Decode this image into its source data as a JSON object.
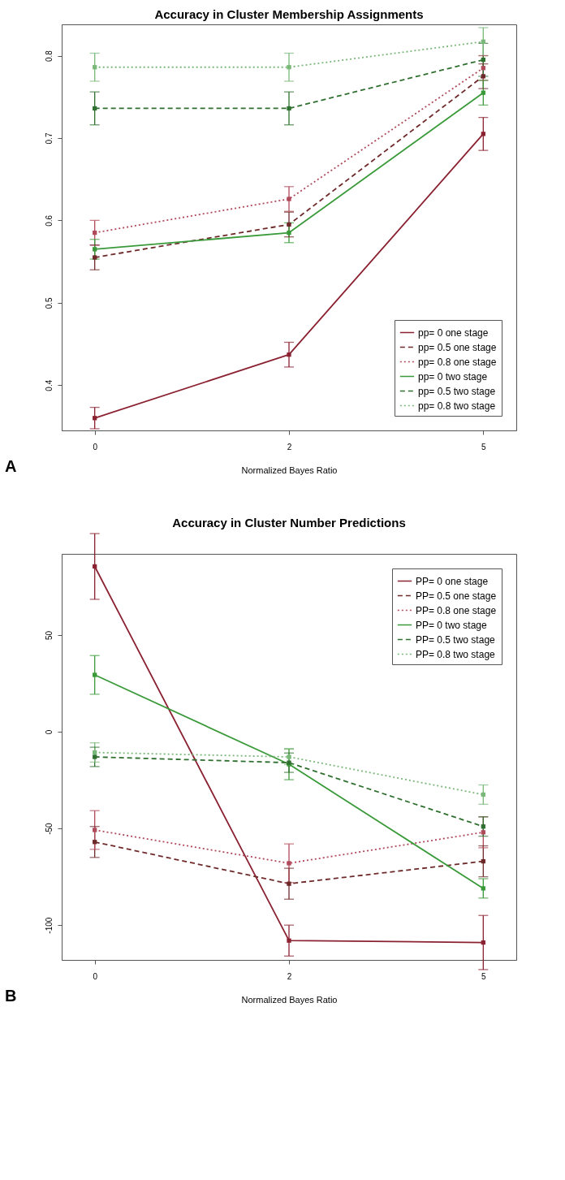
{
  "chart_data": [
    {
      "type": "line",
      "title": "Accuracy in Cluster Membership Assignments",
      "xlabel": "Normalized Bayes Ratio",
      "categories": [
        "0",
        "2",
        "5"
      ],
      "ylim": [
        0.345,
        0.838
      ],
      "yticks": [
        0.4,
        0.5,
        0.6,
        0.7,
        0.8
      ],
      "grid": false,
      "legend": "bottom right",
      "marker": "square",
      "annotations": [
        "A"
      ],
      "series": [
        {
          "name": "pp= 0    one stage",
          "color": "#8b2232",
          "line_style": "solid",
          "values": [
            0.36,
            0.437,
            0.705
          ],
          "errors": [
            0.013,
            0.015,
            0.02
          ]
        },
        {
          "name": "pp= 0.5 one stage",
          "color": "#6e2a2a",
          "line_style": "dashed",
          "values": [
            0.555,
            0.595,
            0.775
          ],
          "errors": [
            0.015,
            0.015,
            0.015
          ]
        },
        {
          "name": "pp= 0.8 one stage",
          "color": "#b04a5a",
          "line_style": "dotted",
          "values": [
            0.585,
            0.626,
            0.785
          ],
          "errors": [
            0.015,
            0.015,
            0.015
          ]
        },
        {
          "name": "pp= 0    two stage",
          "color": "#3a9a3a",
          "line_style": "solid",
          "values": [
            0.565,
            0.585,
            0.755
          ],
          "errors": [
            0.012,
            0.012,
            0.015
          ]
        },
        {
          "name": "pp= 0.5 two stage",
          "color": "#2f6f2f",
          "line_style": "dashed",
          "values": [
            0.736,
            0.736,
            0.795
          ],
          "errors": [
            0.02,
            0.02,
            0.02
          ]
        },
        {
          "name": "pp= 0.8 two stage",
          "color": "#7ab87a",
          "line_style": "dotted",
          "values": [
            0.786,
            0.786,
            0.817
          ],
          "errors": [
            0.017,
            0.017,
            0.017
          ]
        }
      ]
    },
    {
      "type": "line",
      "title": "Accuracy in Cluster Number Predictions",
      "xlabel": "Normalized Bayes Ratio",
      "categories": [
        "0",
        "2",
        "5"
      ],
      "ylim": [
        -118,
        92
      ],
      "yticks": [
        -100,
        -50,
        0,
        50
      ],
      "grid": false,
      "legend": "top right",
      "marker": "square",
      "annotations": [
        "B"
      ],
      "series": [
        {
          "name": "PP= 0    one stage",
          "color": "#8b2232",
          "line_style": "solid",
          "values": [
            85.5,
            -108,
            -109
          ],
          "errors": [
            17,
            8,
            14
          ]
        },
        {
          "name": "PP= 0.5 one stage",
          "color": "#6e2a2a",
          "line_style": "dashed",
          "values": [
            -57,
            -78.6,
            -67
          ],
          "errors": [
            8,
            8,
            8
          ]
        },
        {
          "name": "PP= 0.8 one stage",
          "color": "#b04a5a",
          "line_style": "dotted",
          "values": [
            -50.8,
            -68,
            -52
          ],
          "errors": [
            10,
            10,
            8
          ]
        },
        {
          "name": "PP= 0    two stage",
          "color": "#3a9a3a",
          "line_style": "solid",
          "values": [
            29.4,
            -16.8,
            -81
          ],
          "errors": [
            10,
            8,
            5
          ]
        },
        {
          "name": "PP= 0.5 two stage",
          "color": "#2f6f2f",
          "line_style": "dashed",
          "values": [
            -13,
            -16,
            -49
          ],
          "errors": [
            5,
            5,
            5
          ]
        },
        {
          "name": "PP= 0.8 two stage",
          "color": "#7ab87a",
          "line_style": "dotted",
          "values": [
            -10.7,
            -13,
            -32.5
          ],
          "errors": [
            5,
            4,
            5
          ]
        }
      ]
    }
  ]
}
